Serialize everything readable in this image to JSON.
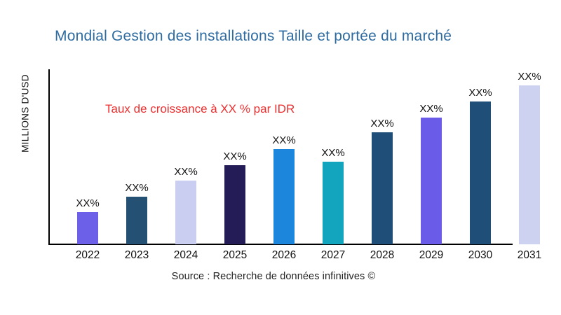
{
  "chart_data": {
    "type": "bar",
    "title": "Mondial Gestion des installations Taille et portée du marché",
    "title_color": "#2E6BA0",
    "ylabel": "MILLIONS D'USD",
    "xlabel": "",
    "annotation": {
      "text": "Taux de croissance à XX % par IDR",
      "color": "#EB2F2F"
    },
    "source": "Source : Recherche de données infinitives ©",
    "categories": [
      "2022",
      "2023",
      "2024",
      "2025",
      "2026",
      "2027",
      "2028",
      "2029",
      "2030",
      "2031"
    ],
    "bar_labels": [
      "XX%",
      "XX%",
      "XX%",
      "XX%",
      "XX%",
      "XX%",
      "XX%",
      "XX%",
      "XX%",
      "XX%"
    ],
    "values": [
      46,
      68,
      91,
      113,
      136,
      118,
      160,
      181,
      204,
      227
    ],
    "bar_colors": [
      "#6C5FE8",
      "#235073",
      "#CACEF0",
      "#231C56",
      "#1C86DC",
      "#14A5BE",
      "#1F4E79",
      "#6A5CE8",
      "#1F4E79",
      "#CED2F1"
    ],
    "ylim": [
      0,
      250
    ],
    "grid": false,
    "legend": "none",
    "axis_color": "#000000"
  }
}
